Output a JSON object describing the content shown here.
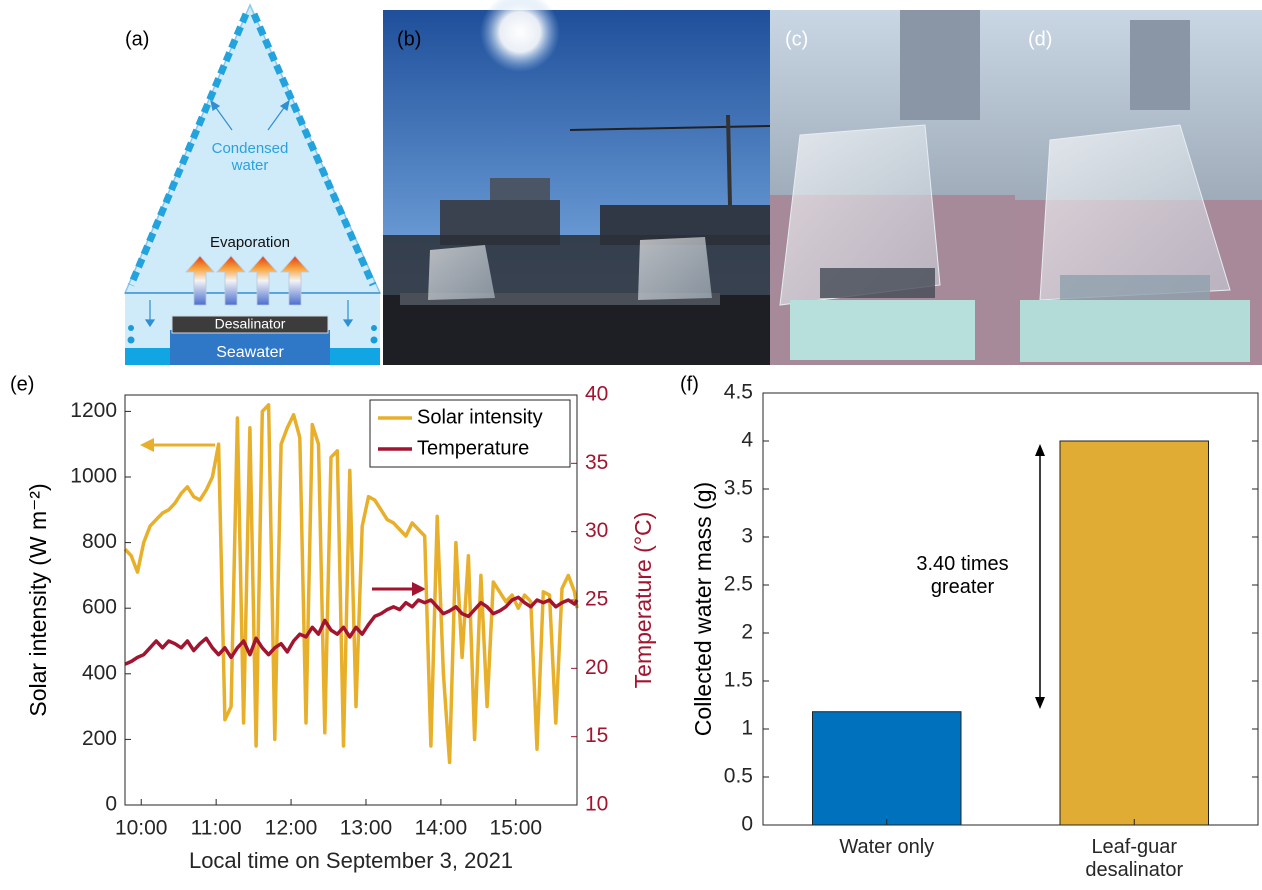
{
  "panel_a": {
    "label": "(a)",
    "condensed": "Condensed water",
    "evaporation": "Evaporation",
    "desalinator": "Desalinator",
    "seawater": "Seawater"
  },
  "panel_b": {
    "label": "(b)"
  },
  "panel_c": {
    "label": "(c)"
  },
  "panel_d": {
    "label": "(d)"
  },
  "chart_data": [
    {
      "type": "line",
      "panel_label": "(e)",
      "x_label": "Local time on September 3, 2021",
      "y_label": "Solar intensity (W m⁻²)",
      "y2_label": "Temperature (°C)",
      "x": [
        "09:47",
        "09:52",
        "09:57",
        "10:02",
        "10:07",
        "10:12",
        "10:17",
        "10:22",
        "10:27",
        "10:32",
        "10:37",
        "10:42",
        "10:47",
        "10:52",
        "10:57",
        "11:02",
        "11:07",
        "11:12",
        "11:17",
        "11:22",
        "11:27",
        "11:32",
        "11:37",
        "11:42",
        "11:47",
        "11:52",
        "11:57",
        "12:02",
        "12:07",
        "12:12",
        "12:17",
        "12:22",
        "12:27",
        "12:32",
        "12:37",
        "12:42",
        "12:47",
        "12:52",
        "12:57",
        "13:02",
        "13:07",
        "13:12",
        "13:17",
        "13:22",
        "13:27",
        "13:32",
        "13:37",
        "13:42",
        "13:47",
        "13:52",
        "13:57",
        "14:02",
        "14:07",
        "14:12",
        "14:17",
        "14:22",
        "14:27",
        "14:32",
        "14:37",
        "14:42",
        "14:47",
        "14:52",
        "14:57",
        "15:02",
        "15:07",
        "15:12",
        "15:17",
        "15:22",
        "15:27",
        "15:32",
        "15:37",
        "15:42",
        "15:47",
        "15:49"
      ],
      "xlim": [
        "09:47",
        "15:49"
      ],
      "xticks": [
        "10:00",
        "11:00",
        "12:00",
        "13:00",
        "14:00",
        "15:00"
      ],
      "ylim": [
        0,
        1250
      ],
      "yticks": [
        0,
        200,
        400,
        600,
        800,
        1000,
        1200
      ],
      "y2lim": [
        10,
        40
      ],
      "y2ticks": [
        10,
        15,
        20,
        25,
        30,
        35,
        40
      ],
      "legend": "upper right",
      "series": [
        {
          "name": "Solar intensity",
          "color": "#e8b02a",
          "values": [
            780,
            760,
            710,
            800,
            850,
            870,
            890,
            900,
            920,
            950,
            970,
            940,
            930,
            960,
            1000,
            1100,
            260,
            300,
            1180,
            250,
            1150,
            180,
            1200,
            1220,
            200,
            1100,
            1150,
            1190,
            1120,
            250,
            1160,
            1100,
            220,
            1060,
            1080,
            180,
            1020,
            300,
            850,
            940,
            930,
            900,
            870,
            860,
            840,
            820,
            860,
            840,
            820,
            180,
            880,
            400,
            130,
            800,
            450,
            760,
            200,
            700,
            300,
            680,
            650,
            620,
            640,
            600,
            640,
            620,
            170,
            650,
            640,
            250,
            660,
            700,
            650,
            600
          ]
        },
        {
          "name": "Temperature",
          "color": "#a2142f",
          "axis": "y2",
          "values": [
            20.3,
            20.5,
            20.8,
            21.0,
            21.5,
            22.0,
            21.5,
            22.0,
            21.8,
            21.5,
            22.0,
            21.3,
            21.8,
            22.2,
            21.5,
            21.0,
            21.5,
            20.8,
            21.5,
            22.0,
            21.0,
            22.2,
            21.5,
            21.0,
            21.5,
            21.8,
            21.2,
            22.0,
            22.5,
            22.3,
            23.0,
            22.5,
            23.5,
            22.8,
            22.5,
            23.0,
            22.3,
            23.0,
            22.5,
            23.2,
            23.8,
            24.0,
            24.3,
            24.5,
            24.3,
            24.8,
            24.5,
            25.0,
            24.8,
            25.0,
            24.5,
            24.0,
            24.2,
            24.5,
            24.0,
            23.8,
            24.3,
            24.8,
            24.5,
            24.0,
            24.2,
            24.5,
            25.0,
            25.2,
            24.8,
            24.5,
            25.0,
            24.8,
            25.0,
            24.5,
            24.8,
            25.0,
            24.7,
            25.0
          ]
        }
      ]
    },
    {
      "type": "bar",
      "panel_label": "(f)",
      "y_label": "Collected water mass (g)",
      "categories": [
        "Water only",
        "Leaf-guar desalinator"
      ],
      "values": [
        1.18,
        4
      ],
      "colors": [
        "#0072bd",
        "#e0ac33"
      ],
      "ylim": [
        0,
        4.5
      ],
      "yticks": [
        0,
        0.5,
        1,
        1.5,
        2,
        2.5,
        3,
        3.5,
        4,
        4.5
      ],
      "annotation": "3.40 times greater"
    }
  ]
}
